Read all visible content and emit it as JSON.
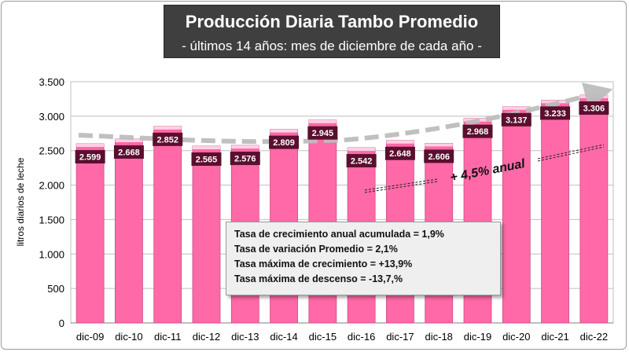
{
  "chart_data": {
    "type": "bar",
    "title": "Producción Diaria Tambo Promedio",
    "subtitle": "- últimos 14 años: mes de diciembre de cada año -",
    "ylabel": "litros diarios de leche",
    "xlabel": "",
    "categories": [
      "dic-09",
      "dic-10",
      "dic-11",
      "dic-12",
      "dic-13",
      "dic-14",
      "dic-15",
      "dic-16",
      "dic-17",
      "dic-18",
      "dic-19",
      "dic-20",
      "dic-21",
      "dic-22"
    ],
    "values": [
      2599,
      2668,
      2852,
      2565,
      2576,
      2809,
      2945,
      2542,
      2648,
      2606,
      2968,
      3137,
      3233,
      3306
    ],
    "value_labels": [
      "2.599",
      "2.668",
      "2.852",
      "2.565",
      "2.576",
      "2.809",
      "2.945",
      "2.542",
      "2.648",
      "2.606",
      "2.968",
      "3.137",
      "3.233",
      "3.306"
    ],
    "ylim": [
      0,
      3500
    ],
    "yticks": [
      0,
      500,
      1000,
      1500,
      2000,
      2500,
      3000,
      3500
    ],
    "ytick_labels": [
      "0",
      "500",
      "1.000",
      "1.500",
      "2.000",
      "2.500",
      "3.000",
      "3.500"
    ],
    "grid": true,
    "bar_color": "#ff69a7",
    "label_bg_color": "#5a0f2e",
    "trend_annotation": "+ 4,5% anual",
    "stats": [
      "Tasa de crecimiento anual acumulada = 1,9%",
      "Tasa de variación Promedio = 2,1%",
      "Tasa máxima de crecimiento = +13,9%",
      "Tasa máxima de descenso = -13,7,%"
    ]
  }
}
